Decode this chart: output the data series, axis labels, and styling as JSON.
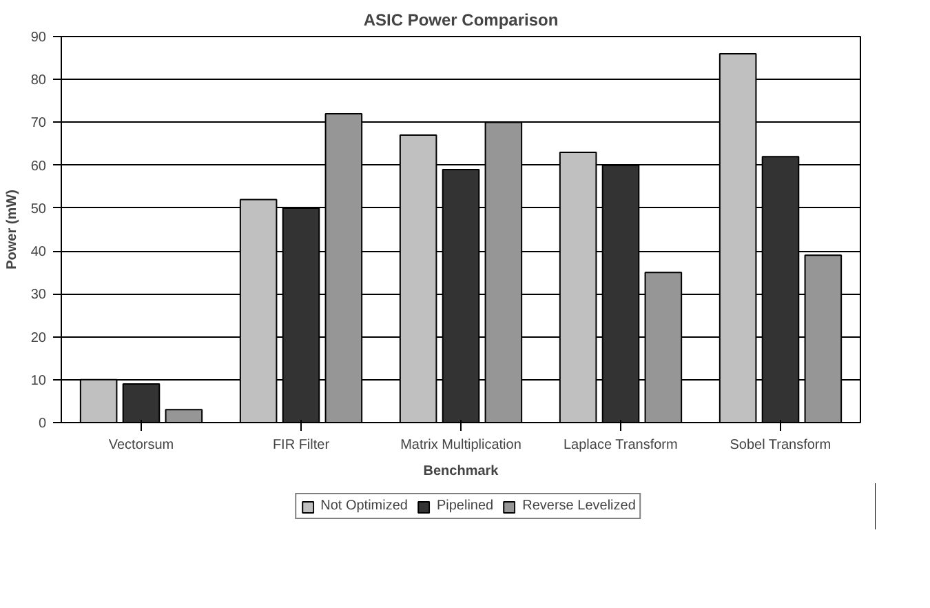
{
  "chart_data": {
    "type": "bar",
    "title": "ASIC Power Comparison",
    "xlabel": "Benchmark",
    "ylabel": "Power (mW)",
    "categories": [
      "Vectorsum",
      "FIR Filter",
      "Matrix Multiplication",
      "Laplace Transform",
      "Sobel Transform"
    ],
    "series": [
      {
        "name": "Not Optimized",
        "color": "#c0c0c0",
        "values": [
          10,
          52,
          67,
          63,
          86
        ]
      },
      {
        "name": "Pipelined",
        "color": "#333333",
        "values": [
          9,
          50,
          59,
          60,
          62
        ]
      },
      {
        "name": "Reverse Levelized",
        "color": "#969696",
        "values": [
          3,
          72,
          70,
          35,
          39
        ]
      }
    ],
    "ylim": [
      0,
      90
    ],
    "yticks": [
      0,
      10,
      20,
      30,
      40,
      50,
      60,
      70,
      80,
      90
    ],
    "grid": "y",
    "legend": "bottom"
  }
}
